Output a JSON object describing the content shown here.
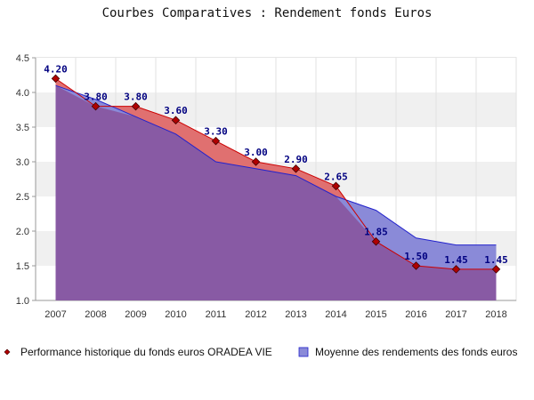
{
  "chart_data": {
    "type": "area",
    "title": "Courbes Comparatives : Rendement fonds Euros",
    "xlabel": "",
    "ylabel": "",
    "categories": [
      "2007",
      "2008",
      "2009",
      "2010",
      "2011",
      "2012",
      "2013",
      "2014",
      "2015",
      "2016",
      "2017",
      "2018"
    ],
    "ylim": [
      1.0,
      4.5
    ],
    "yticks": [
      "1.0",
      "1.5",
      "2.0",
      "2.5",
      "3.0",
      "3.5",
      "4.0",
      "4.5"
    ],
    "grid": "horizontal-bands",
    "legend_position": "bottom",
    "series": [
      {
        "name": "Performance historique du fonds euros ORADEA VIE",
        "values": [
          4.2,
          3.8,
          3.8,
          3.6,
          3.3,
          3.0,
          2.9,
          2.65,
          1.85,
          1.5,
          1.45,
          1.45
        ],
        "labels": [
          "4.20",
          "3.80",
          "3.80",
          "3.60",
          "3.30",
          "3.00",
          "2.90",
          "2.65",
          "1.85",
          "1.50",
          "1.45",
          "1.45"
        ],
        "color": "#cc0000",
        "fill": "#e07070"
      },
      {
        "name": "Moyenne des rendements des fonds euros",
        "values": [
          4.1,
          3.9,
          3.65,
          3.4,
          3.0,
          2.9,
          2.8,
          2.5,
          2.3,
          1.9,
          1.8,
          1.8
        ],
        "color": "#2222cc",
        "fill": "#8a8ad8"
      }
    ],
    "overlap_fill": "#885aa4"
  }
}
